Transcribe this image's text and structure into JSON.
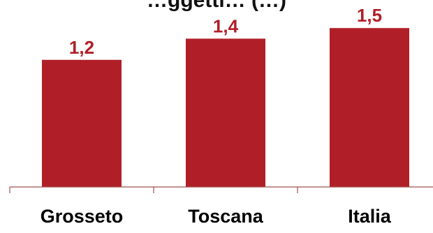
{
  "chart_data": {
    "type": "bar",
    "title": "…ggetti… (…)",
    "categories": [
      "Grosseto",
      "Toscana",
      "Italia"
    ],
    "values": [
      1.2,
      1.4,
      1.5
    ],
    "value_labels": [
      "1,2",
      "1,4",
      "1,5"
    ],
    "xlabel": "",
    "ylabel": "",
    "ylim": [
      0,
      1.62
    ],
    "grid": false,
    "legend": "none",
    "bar_color": "#b01f27",
    "value_label_color": "#b01f27",
    "category_label_color": "#000000",
    "axis_color": "#a05050"
  }
}
